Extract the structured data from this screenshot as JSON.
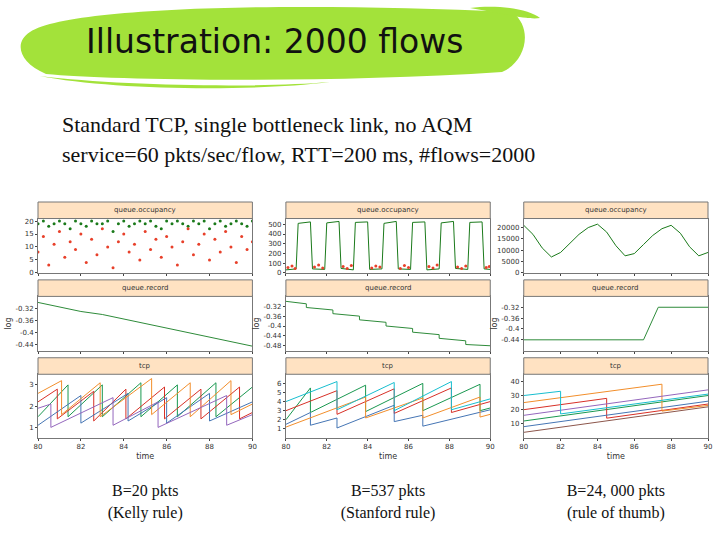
{
  "title": "Illustration: 2000 flows",
  "subtitle": [
    "Standard TCP, single bottleneck link, no AQM",
    "service=60 pkts/sec/flow, RTT=200 ms, #flows=2000"
  ],
  "captions": [
    [
      "B=20 pkts",
      "(Kelly rule)"
    ],
    [
      "B=537 pkts",
      "(Stanford rule)"
    ],
    [
      "B=24, 000 pkts",
      "(rule of thumb)"
    ]
  ],
  "chart_data": [
    {
      "type": "scatter",
      "title": "queue.occupancy",
      "x": [
        80,
        80.25,
        80.5,
        80.75,
        81,
        81.25,
        81.5,
        81.75,
        82,
        82.25,
        82.5,
        82.75,
        83,
        83.25,
        83.5,
        83.75,
        84,
        84.25,
        84.5,
        84.75,
        85,
        85.25,
        85.5,
        85.75,
        86,
        86.25,
        86.5,
        86.75,
        87,
        87.25,
        87.5,
        87.75,
        88,
        88.25,
        88.5,
        88.75,
        89,
        89.25,
        89.5,
        89.75,
        90
      ],
      "xlim": [
        80,
        90
      ],
      "xticks": [
        80,
        82,
        84,
        86,
        88,
        90
      ],
      "ylim": [
        0,
        21
      ],
      "yticks": [
        0,
        5,
        10,
        15,
        20
      ],
      "tick_labels": "y",
      "series": [
        {
          "color": "#1b7a1b",
          "values": [
            19,
            20,
            18,
            19,
            20,
            19,
            17,
            20,
            19,
            18,
            20,
            19,
            19,
            20,
            16,
            19,
            20,
            18,
            19,
            20,
            19,
            20,
            18,
            17,
            20,
            19,
            20,
            19,
            18,
            20,
            19,
            20,
            17,
            19,
            20,
            18,
            19,
            20,
            19,
            18,
            20
          ]
        },
        {
          "color": "#e8402a",
          "values": [
            8,
            14,
            3,
            11,
            16,
            6,
            12,
            9,
            15,
            4,
            13,
            7,
            17,
            10,
            2,
            12,
            15,
            8,
            11,
            5,
            16,
            9,
            13,
            6,
            14,
            10,
            3,
            12,
            17,
            7,
            11,
            15,
            5,
            13,
            8,
            16,
            10,
            4,
            14,
            9,
            12
          ]
        }
      ]
    },
    {
      "type": "line",
      "title": "queue.record",
      "ylabel": "log",
      "x": [
        80,
        81,
        82,
        83,
        84,
        85,
        86,
        87,
        88,
        89,
        90
      ],
      "xlim": [
        80,
        90
      ],
      "xticks": [
        80,
        82,
        84,
        86,
        88,
        90
      ],
      "ylim": [
        -0.46,
        -0.28
      ],
      "yticks": [
        -0.44,
        -0.4,
        -0.36,
        -0.32
      ],
      "tick_labels": "y",
      "series": [
        {
          "color": "#2e8b3a",
          "values": [
            -0.3,
            -0.315,
            -0.33,
            -0.34,
            -0.355,
            -0.37,
            -0.385,
            -0.4,
            -0.415,
            -0.43,
            -0.445
          ]
        }
      ]
    },
    {
      "type": "line",
      "title": "tcp",
      "xlabel": "time",
      "xlim": [
        80,
        90
      ],
      "xticks": [
        80,
        82,
        84,
        86,
        88,
        90
      ],
      "ylim": [
        0.5,
        3.5
      ],
      "yticks": [
        1,
        2,
        3
      ],
      "series": [
        {
          "color": "#1a9850",
          "x": [
            80,
            81.4,
            81.4,
            83.0,
            83.0,
            84.8,
            84.8,
            86.5,
            86.5,
            88.3,
            88.3,
            90
          ],
          "values": [
            1.5,
            3.0,
            1.5,
            3.0,
            1.5,
            3.1,
            1.5,
            3.0,
            1.5,
            3.1,
            1.5,
            2.9
          ]
        },
        {
          "color": "#d73027",
          "x": [
            80,
            80.9,
            80.9,
            82.6,
            82.6,
            84.1,
            84.1,
            85.9,
            85.9,
            87.6,
            87.6,
            89.4,
            89.4,
            90
          ],
          "values": [
            2.2,
            2.8,
            1.4,
            2.7,
            1.3,
            2.8,
            1.4,
            2.9,
            1.4,
            2.8,
            1.4,
            2.9,
            1.4,
            1.7
          ]
        },
        {
          "color": "#4575b4",
          "x": [
            80,
            82.0,
            82.0,
            84.2,
            84.2,
            86.0,
            86.0,
            88.0,
            88.0,
            90
          ],
          "values": [
            1.1,
            2.5,
            1.2,
            2.6,
            1.3,
            2.4,
            1.2,
            2.6,
            1.3,
            2.2
          ]
        },
        {
          "color": "#f28e2b",
          "x": [
            80,
            81.1,
            81.1,
            82.9,
            82.9,
            85.3,
            85.3,
            87.1,
            87.1,
            89.0,
            89.0,
            90
          ],
          "values": [
            2.6,
            3.2,
            1.6,
            3.1,
            1.5,
            3.3,
            1.6,
            3.1,
            1.5,
            3.2,
            1.6,
            2.1
          ]
        },
        {
          "color": "#9467bd",
          "x": [
            80,
            80.6,
            80.6,
            83.5,
            83.5,
            85.6,
            85.6,
            88.8,
            88.8,
            90
          ],
          "values": [
            1.9,
            2.1,
            1.0,
            2.4,
            1.1,
            2.2,
            1.0,
            2.5,
            1.1,
            1.6
          ]
        }
      ]
    },
    {
      "type": "line",
      "title": "queue.occupancy",
      "xlim": [
        80,
        90
      ],
      "xticks": [
        80,
        82,
        84,
        86,
        88,
        90
      ],
      "ylim": [
        0,
        560
      ],
      "yticks": [
        0,
        100,
        200,
        300,
        400,
        500
      ],
      "tick_labels": "y",
      "series": [
        {
          "type": "line",
          "color": "#1b7a1b",
          "x": [
            80,
            80.5,
            80.6,
            81.2,
            81.3,
            81.9,
            82.0,
            82.6,
            82.7,
            83.3,
            83.4,
            84.0,
            84.1,
            84.7,
            84.8,
            85.4,
            85.5,
            86.1,
            86.2,
            86.8,
            86.9,
            87.5,
            87.6,
            88.2,
            88.3,
            88.9,
            89.0,
            89.6,
            89.7,
            90
          ],
          "values": [
            30,
            40,
            510,
            525,
            40,
            35,
            515,
            530,
            45,
            30,
            520,
            525,
            35,
            40,
            510,
            530,
            40,
            35,
            520,
            525,
            30,
            40,
            515,
            530,
            45,
            35,
            520,
            525,
            40,
            35
          ]
        },
        {
          "type": "scatter",
          "color": "#e8402a",
          "x": [
            80.1,
            80.3,
            80.45,
            81.4,
            81.6,
            81.8,
            82.8,
            83.0,
            83.2,
            84.2,
            84.4,
            84.6,
            85.6,
            85.8,
            86.0,
            87.0,
            87.2,
            87.4,
            88.4,
            88.6,
            88.8,
            89.8,
            89.95
          ],
          "values": [
            55,
            70,
            45,
            60,
            80,
            50,
            65,
            45,
            75,
            50,
            70,
            60,
            45,
            75,
            55,
            65,
            50,
            80,
            60,
            45,
            70,
            55,
            65
          ]
        }
      ]
    },
    {
      "type": "line",
      "title": "queue.record",
      "ylabel": "log",
      "xlim": [
        80,
        90
      ],
      "xticks": [
        80,
        82,
        84,
        86,
        88,
        90
      ],
      "ylim": [
        -0.5,
        -0.28
      ],
      "yticks": [
        -0.48,
        -0.44,
        -0.4,
        -0.36,
        -0.32
      ],
      "tick_labels": "y",
      "series": [
        {
          "color": "#2e8b3a",
          "x": [
            80,
            81,
            81,
            82.3,
            82.3,
            83.6,
            83.6,
            84.9,
            84.9,
            86.2,
            86.2,
            87.5,
            87.5,
            88.8,
            88.8,
            90
          ],
          "values": [
            -0.3,
            -0.31,
            -0.325,
            -0.335,
            -0.35,
            -0.36,
            -0.375,
            -0.385,
            -0.4,
            -0.41,
            -0.425,
            -0.435,
            -0.45,
            -0.46,
            -0.475,
            -0.48
          ]
        }
      ]
    },
    {
      "type": "line",
      "title": "tcp",
      "xlabel": "time",
      "xlim": [
        80,
        90
      ],
      "xticks": [
        80,
        82,
        84,
        86,
        88,
        90
      ],
      "ylim": [
        0,
        7
      ],
      "yticks": [
        1,
        2,
        3,
        4,
        5,
        6
      ],
      "series": [
        {
          "color": "#1a9850",
          "x": [
            80,
            81.2,
            81.2,
            83.9,
            83.9,
            86.7,
            86.7,
            89.5,
            89.5,
            90
          ],
          "values": [
            2,
            5.5,
            2.8,
            5.8,
            2.9,
            6,
            3,
            5.9,
            3,
            3.3
          ]
        },
        {
          "color": "#d73027",
          "x": [
            80,
            82.5,
            82.5,
            85.3,
            85.3,
            88.1,
            88.1,
            90
          ],
          "values": [
            3,
            5.2,
            2.6,
            5.4,
            2.7,
            5.5,
            2.8,
            4
          ]
        },
        {
          "color": "#4575b4",
          "x": [
            80,
            81.2,
            81.2,
            82.5,
            82.5,
            85.3,
            85.3,
            86.7,
            86.7,
            90
          ],
          "values": [
            1.5,
            2.8,
            1.4,
            2.2,
            1.1,
            3.6,
            1.8,
            2.5,
            1.3,
            3.1
          ]
        },
        {
          "color": "#f28e2b",
          "x": [
            80,
            83.9,
            83.9,
            86.7,
            86.7,
            89.5,
            89.5,
            90
          ],
          "values": [
            1.2,
            4.5,
            2.2,
            4.4,
            2.2,
            4.5,
            2.3,
            2.6
          ]
        },
        {
          "color": "#17becf",
          "x": [
            80,
            82.5,
            82.5,
            85.3,
            85.3,
            88.1,
            88.1,
            90
          ],
          "values": [
            4,
            6.2,
            3.1,
            6.1,
            3,
            6.2,
            3.1,
            4.3
          ]
        }
      ]
    },
    {
      "type": "line",
      "title": "queue.occupancy",
      "x": [
        80,
        80.5,
        81,
        81.5,
        82,
        82.5,
        83,
        83.5,
        84,
        84.5,
        85,
        85.5,
        86,
        86.5,
        87,
        87.5,
        88,
        88.5,
        89,
        89.5,
        90
      ],
      "xlim": [
        80,
        90
      ],
      "xticks": [
        80,
        82,
        84,
        86,
        88,
        90
      ],
      "ylim": [
        0,
        24000
      ],
      "yticks": [
        0,
        5000,
        10000,
        15000,
        20000
      ],
      "tick_labels": "y",
      "series": [
        {
          "color": "#1b7a1b",
          "values": [
            21000,
            17000,
            11000,
            7000,
            9000,
            13000,
            17000,
            20000,
            21500,
            18000,
            12000,
            7500,
            8500,
            12500,
            16500,
            19500,
            21000,
            17500,
            11500,
            7500,
            9000
          ]
        }
      ]
    },
    {
      "type": "line",
      "title": "queue.record",
      "ylabel": "log",
      "xlim": [
        80,
        90
      ],
      "xticks": [
        80,
        82,
        84,
        86,
        88,
        90
      ],
      "ylim": [
        -0.48,
        -0.28
      ],
      "yticks": [
        -0.44,
        -0.4,
        -0.36,
        -0.32
      ],
      "tick_labels": "y",
      "series": [
        {
          "color": "#2e8b3a",
          "x": [
            80,
            86.5,
            87.3,
            90
          ],
          "values": [
            -0.44,
            -0.44,
            -0.32,
            -0.32
          ]
        }
      ]
    },
    {
      "type": "line",
      "title": "tcp",
      "xlabel": "time",
      "xlim": [
        80,
        90
      ],
      "xticks": [
        80,
        82,
        84,
        86,
        88,
        90
      ],
      "ylim": [
        0,
        45
      ],
      "yticks": [
        10,
        20,
        30,
        40
      ],
      "series": [
        {
          "color": "#1a9850",
          "x": [
            80,
            90
          ],
          "values": [
            12,
            30
          ]
        },
        {
          "color": "#d73027",
          "x": [
            80,
            84.5,
            84.5,
            90
          ],
          "values": [
            20,
            28,
            14,
            24
          ]
        },
        {
          "color": "#4575b4",
          "x": [
            80,
            90
          ],
          "values": [
            8,
            26
          ]
        },
        {
          "color": "#f28e2b",
          "x": [
            80,
            87.5,
            87.5,
            90
          ],
          "values": [
            25,
            38,
            19,
            23
          ]
        },
        {
          "color": "#9467bd",
          "x": [
            80,
            90
          ],
          "values": [
            16,
            34
          ]
        },
        {
          "color": "#17becf",
          "x": [
            80,
            82,
            82,
            90
          ],
          "values": [
            30,
            33,
            17,
            31
          ]
        },
        {
          "color": "#8c564b",
          "x": [
            80,
            90
          ],
          "values": [
            4,
            22
          ]
        }
      ]
    }
  ]
}
